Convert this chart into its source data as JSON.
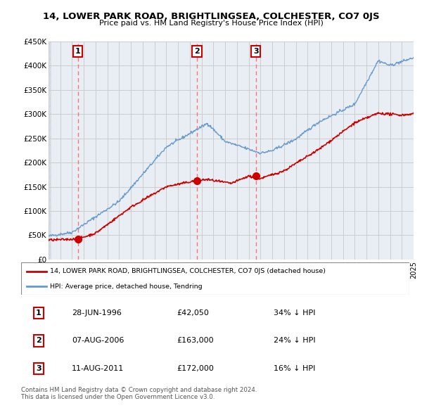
{
  "title": "14, LOWER PARK ROAD, BRIGHTLINGSEA, COLCHESTER, CO7 0JS",
  "subtitle": "Price paid vs. HM Land Registry's House Price Index (HPI)",
  "legend_label_red": "14, LOWER PARK ROAD, BRIGHTLINGSEA, COLCHESTER, CO7 0JS (detached house)",
  "legend_label_blue": "HPI: Average price, detached house, Tendring",
  "transactions": [
    {
      "label": "1",
      "date": "28-JUN-1996",
      "price": 42050,
      "x_year": 1996.49,
      "hpi_pct": "34% ↓ HPI"
    },
    {
      "label": "2",
      "date": "07-AUG-2006",
      "price": 163000,
      "x_year": 2006.6,
      "hpi_pct": "24% ↓ HPI"
    },
    {
      "label": "3",
      "date": "11-AUG-2011",
      "price": 172000,
      "x_year": 2011.61,
      "hpi_pct": "16% ↓ HPI"
    }
  ],
  "xmin": 1994,
  "xmax": 2025,
  "ymin": 0,
  "ymax": 450000,
  "yticks": [
    0,
    50000,
    100000,
    150000,
    200000,
    250000,
    300000,
    350000,
    400000,
    450000
  ],
  "ytick_labels": [
    "£0",
    "£50K",
    "£100K",
    "£150K",
    "£200K",
    "£250K",
    "£300K",
    "£350K",
    "£400K",
    "£450K"
  ],
  "footer": "Contains HM Land Registry data © Crown copyright and database right 2024.\nThis data is licensed under the Open Government Licence v3.0.",
  "red_color": "#cc0000",
  "blue_color": "#6699cc",
  "grid_color": "#cccccc",
  "dashed_line_color": "#ff6666",
  "bg_color": "#e8eef4"
}
